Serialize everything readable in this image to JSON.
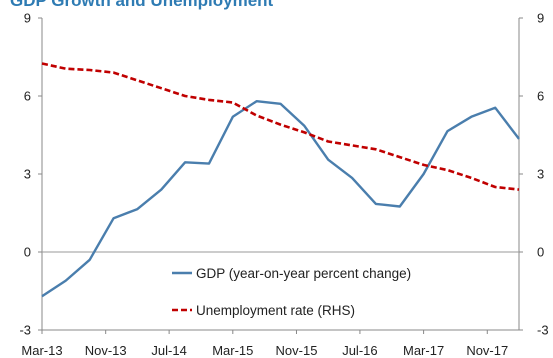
{
  "chart_data": {
    "type": "line",
    "title": "GDP Growth and Unemployment",
    "x": [
      "Mar-13",
      "Jun-13",
      "Sep-13",
      "Dec-13",
      "Mar-14",
      "Jun-14",
      "Sep-14",
      "Dec-14",
      "Mar-15",
      "Jun-15",
      "Sep-15",
      "Dec-15",
      "Mar-16",
      "Jun-16",
      "Sep-16",
      "Dec-16",
      "Mar-17",
      "Jun-17",
      "Sep-17",
      "Dec-17",
      "Mar-18"
    ],
    "x_tick_labels": [
      "Mar-13",
      "Nov-13",
      "Jul-14",
      "Mar-15",
      "Nov-15",
      "Jul-16",
      "Mar-17",
      "Nov-17"
    ],
    "x_tick_indices": [
      0,
      2.67,
      5.33,
      8,
      10.67,
      13.33,
      16,
      18.67
    ],
    "left_axis": {
      "ylim": [
        -3,
        9
      ],
      "ticks": [
        "-3",
        "0",
        "3",
        "6",
        "9"
      ]
    },
    "right_axis": {
      "ylim": [
        -3,
        9
      ],
      "ticks": [
        "-3",
        "0",
        "3",
        "6",
        "9"
      ]
    },
    "grid": false,
    "legend_placement": "lower-center",
    "series": [
      {
        "name": "GDP (year-on-year percent change)",
        "axis": "left",
        "color": "#4a7ead",
        "style": "solid",
        "values": [
          -1.7,
          -1.1,
          -0.3,
          1.3,
          1.65,
          2.4,
          3.45,
          3.4,
          5.2,
          5.8,
          5.7,
          4.85,
          3.55,
          2.85,
          1.85,
          1.75,
          3.0,
          4.65,
          5.2,
          5.55,
          4.35
        ]
      },
      {
        "name": "Unemployment rate (RHS)",
        "axis": "right",
        "color": "#c00000",
        "style": "dashed",
        "values": [
          7.25,
          7.05,
          7.0,
          6.9,
          6.6,
          6.3,
          6.0,
          5.85,
          5.75,
          5.25,
          4.9,
          4.6,
          4.25,
          4.1,
          3.95,
          3.65,
          3.35,
          3.15,
          2.85,
          2.5,
          2.4
        ]
      }
    ]
  }
}
